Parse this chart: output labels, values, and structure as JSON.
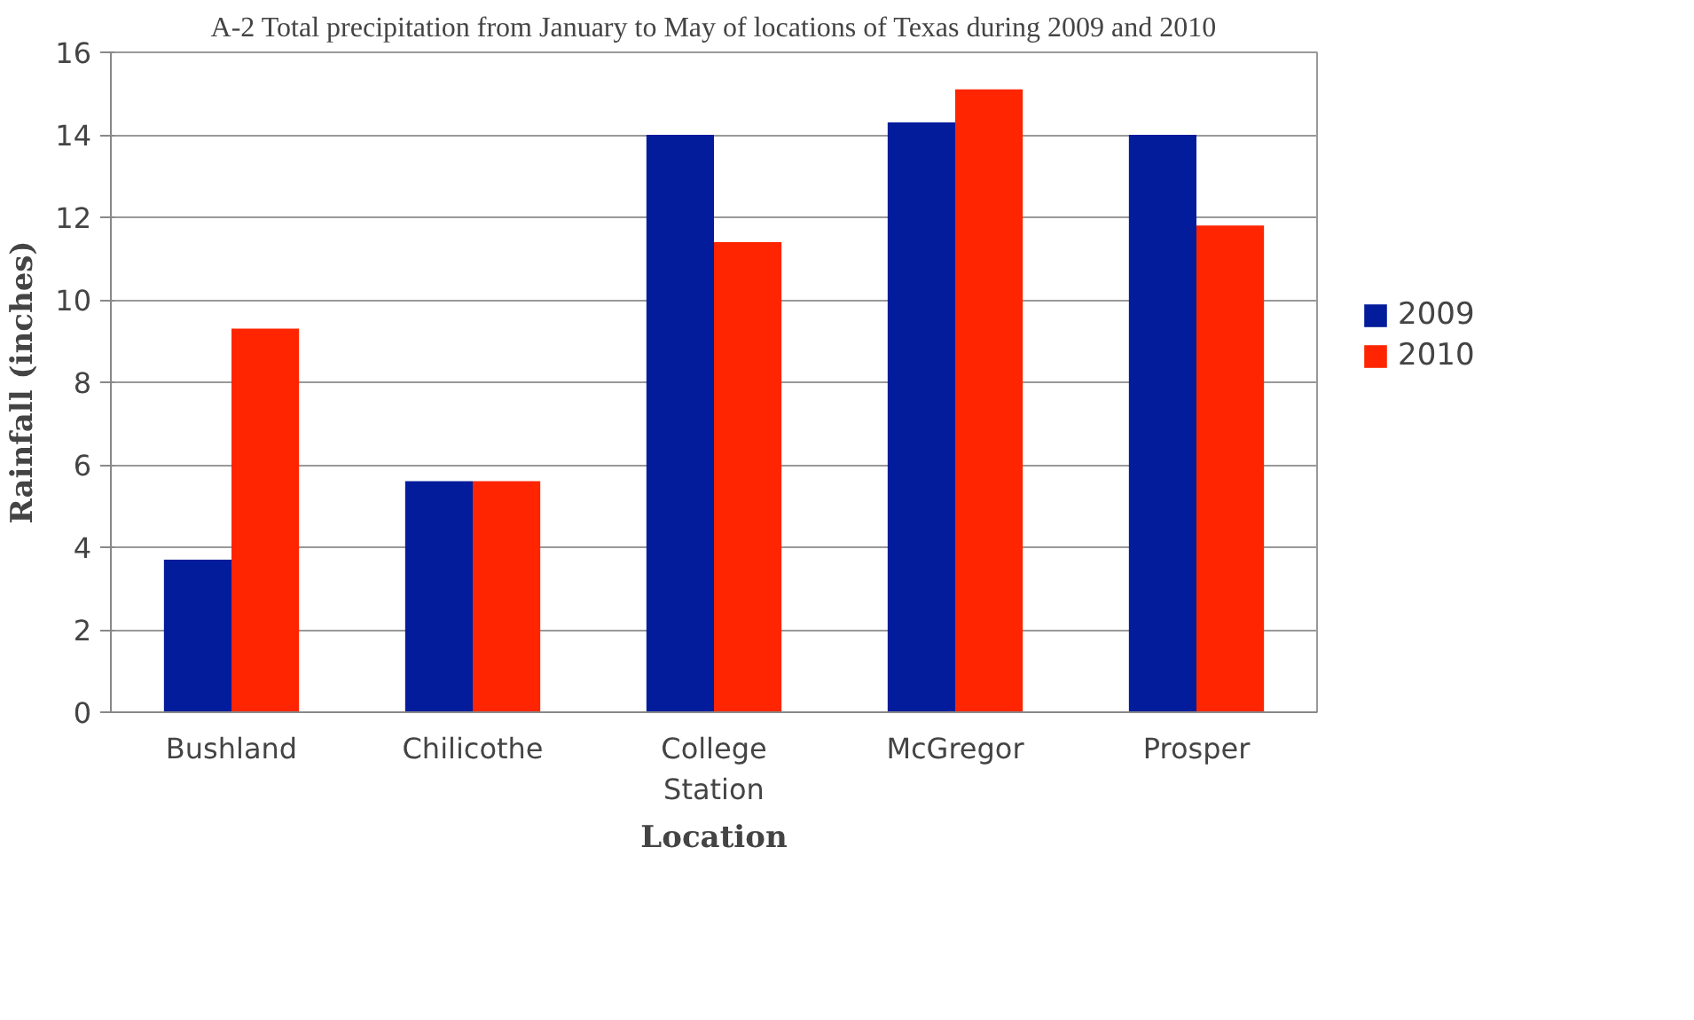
{
  "chart_data": {
    "type": "bar",
    "title": "A-2 Total precipitation from January to May of locations of Texas during 2009 and 2010",
    "xlabel": "Location",
    "ylabel": "Rainfall (inches)",
    "categories": [
      "Bushland",
      "Chilicothe",
      "College Station",
      "McGregor",
      "Prosper"
    ],
    "series": [
      {
        "name": "2009",
        "color": "#031c9c",
        "values": [
          3.7,
          5.6,
          14.0,
          14.3,
          14.0
        ]
      },
      {
        "name": "2010",
        "color": "#fe2500",
        "values": [
          9.3,
          5.6,
          11.4,
          15.1,
          11.8
        ]
      }
    ],
    "ylim": [
      0,
      16
    ],
    "yticks": [
      0,
      2,
      4,
      6,
      8,
      10,
      12,
      14,
      16
    ],
    "grid": "y",
    "legend": "right"
  }
}
